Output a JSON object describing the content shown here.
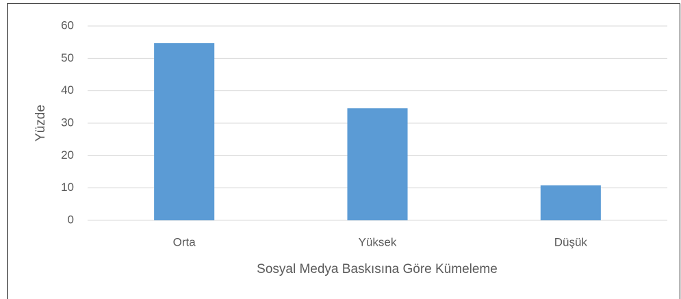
{
  "chart_data": {
    "type": "bar",
    "categories": [
      "Orta",
      "Yüksek",
      "Düşük"
    ],
    "values": [
      54.7,
      34.6,
      10.8
    ],
    "color": "#5b9bd5",
    "xlabel": "Sosyal Medya Baskısına Göre Kümeleme",
    "ylabel": "Yüzde",
    "ylim": [
      0,
      60
    ],
    "yticks": [
      0,
      10,
      20,
      30,
      40,
      50,
      60
    ],
    "grid": true
  }
}
